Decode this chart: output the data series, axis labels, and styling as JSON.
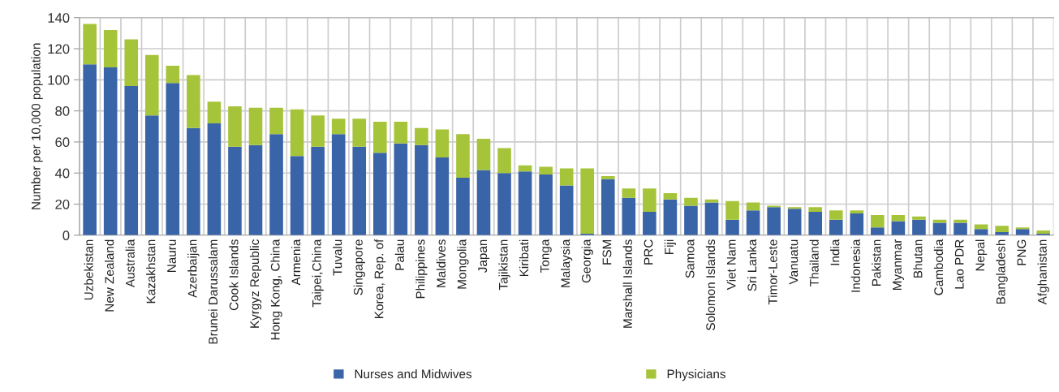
{
  "chart_data": {
    "type": "bar",
    "stacked": true,
    "ylabel": "Number per 10,000 population",
    "categories": [
      "Uzbekistan",
      "New Zealand",
      "Australia",
      "Kazakhstan",
      "Nauru",
      "Azerbaijan",
      "Brunei Darussalam",
      "Cook Islands",
      "Kyrgyz Republic",
      "Hong Kong, China",
      "Armenia",
      "Taipei,China",
      "Tuvalu",
      "Singapore",
      "Korea, Rep. of",
      "Palau",
      "Philippines",
      "Maldives",
      "Mongolia",
      "Japan",
      "Tajikistan",
      "Kiribati",
      "Tonga",
      "Malaysia",
      "Georgia",
      "FSM",
      "Marshall Islands",
      "PRC",
      "Fiji",
      "Samoa",
      "Solomon Islands",
      "Viet Nam",
      "Sri Lanka",
      "Timor-Leste",
      "Vanuatu",
      "Thailand",
      "India",
      "Indonesia",
      "Pakistan",
      "Myanmar",
      "Bhutan",
      "Cambodia",
      "Lao PDR",
      "Nepal",
      "Bangladesh",
      "PNG",
      "Afghanistan"
    ],
    "series": [
      {
        "name": "Nurses and Midwives",
        "color": "#3a64a8",
        "values": [
          110,
          108,
          96,
          77,
          98,
          69,
          72,
          57,
          58,
          65,
          51,
          57,
          65,
          57,
          53,
          59,
          58,
          50,
          37,
          42,
          40,
          41,
          39,
          32,
          1,
          36,
          24,
          15,
          23,
          19,
          21,
          10,
          16,
          18,
          17,
          15,
          10,
          14,
          5,
          9,
          10,
          8,
          8,
          4,
          2,
          4,
          1
        ]
      },
      {
        "name": "Physicians",
        "color": "#a6c439",
        "values": [
          26,
          24,
          30,
          39,
          11,
          34,
          14,
          26,
          24,
          17,
          30,
          20,
          10,
          18,
          20,
          14,
          11,
          18,
          28,
          20,
          16,
          4,
          5,
          11,
          42,
          2,
          6,
          15,
          4,
          5,
          2,
          12,
          5,
          1,
          1,
          3,
          6,
          2,
          8,
          4,
          2,
          2,
          2,
          3,
          4,
          1,
          2
        ]
      }
    ],
    "ylim": [
      0,
      140
    ],
    "yticks": [
      0,
      20,
      40,
      60,
      80,
      100,
      120,
      140
    ],
    "grid": true,
    "legend": "bottom"
  }
}
